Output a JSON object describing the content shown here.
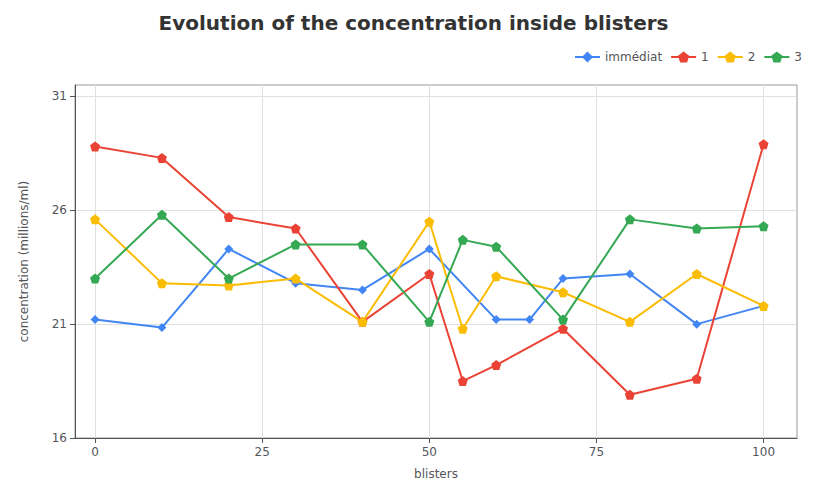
{
  "chart_data": {
    "type": "line",
    "title": "Evolution of the concentration inside blisters",
    "x_label": "blisters",
    "y_label": "concentration (millions/ml)",
    "xlim": [
      -3,
      105
    ],
    "xticks": [
      0,
      25,
      50,
      75,
      100
    ],
    "ylim": [
      16,
      31.5
    ],
    "yticks": [
      16,
      21,
      26,
      31
    ],
    "grid": true,
    "legend": "upper right",
    "series": [
      {
        "name": "immédiat",
        "color": "#4285f4",
        "marker": "diamond",
        "x": [
          0,
          10,
          20,
          30,
          40,
          50,
          60,
          65,
          70,
          80,
          90,
          100
        ],
        "values": [
          21.2,
          20.85,
          24.3,
          22.8,
          22.5,
          24.3,
          21.2,
          21.2,
          23.0,
          23.2,
          21.0,
          21.8
        ]
      },
      {
        "name": "1",
        "color": "#ea4335",
        "marker": "pentagon",
        "x": [
          0,
          10,
          20,
          30,
          40,
          50,
          55,
          60,
          70,
          80,
          90,
          100
        ],
        "values": [
          28.8,
          28.3,
          25.7,
          25.2,
          21.1,
          23.2,
          18.5,
          19.2,
          20.8,
          17.9,
          18.6,
          28.9
        ]
      },
      {
        "name": "2",
        "color": "#fbbc04",
        "marker": "pentagon",
        "x": [
          0,
          10,
          20,
          30,
          40,
          50,
          55,
          60,
          70,
          80,
          90,
          100
        ],
        "values": [
          25.6,
          22.8,
          22.7,
          23.0,
          21.1,
          25.5,
          20.8,
          23.1,
          22.4,
          21.1,
          23.2,
          21.8
        ]
      },
      {
        "name": "3",
        "color": "#34a853",
        "marker": "pentagon",
        "x": [
          0,
          10,
          20,
          30,
          40,
          50,
          55,
          60,
          70,
          80,
          90,
          100
        ],
        "values": [
          23.0,
          25.8,
          23.0,
          24.5,
          24.5,
          21.1,
          24.7,
          24.4,
          21.2,
          25.6,
          25.2,
          25.3
        ]
      }
    ]
  }
}
